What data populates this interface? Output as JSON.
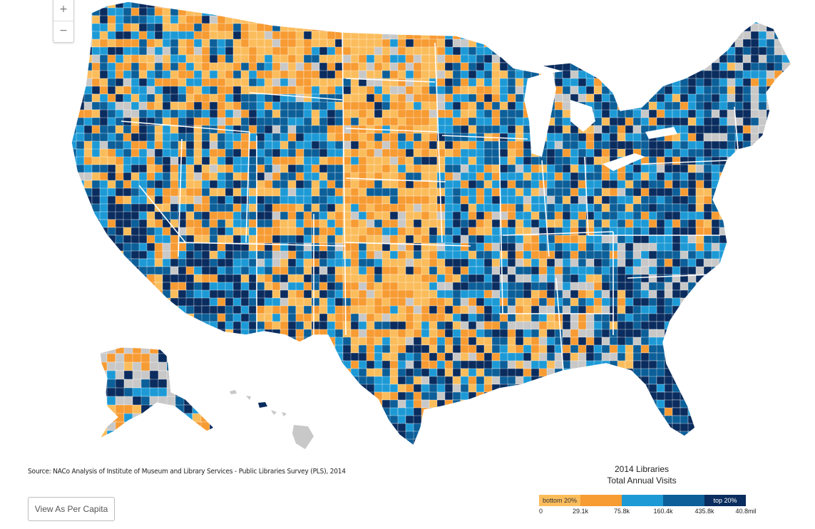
{
  "zoom": {
    "in_label": "+",
    "out_label": "−"
  },
  "source": {
    "label": "Source:",
    "text": "NACo Analysis of Institute of Museum and Library Services - Public Libraries Survey (PLS), 2014"
  },
  "button": {
    "label": "View As Per Capita"
  },
  "legend": {
    "title_line1": "2014 Libraries",
    "title_line2": "Total Annual Visits",
    "bins": [
      {
        "label": "bottom 20%",
        "color": "#fbbd5c"
      },
      {
        "label": "",
        "color": "#f79b33"
      },
      {
        "label": "",
        "color": "#1d9ad6"
      },
      {
        "label": "",
        "color": "#0c5f98"
      },
      {
        "label": "top 20%",
        "color": "#0a2c5e"
      }
    ],
    "ticks": [
      "0",
      "29.1k",
      "75.8k",
      "160.4k",
      "435.8k",
      "40.8mil"
    ]
  },
  "colors": {
    "nodata": "#c8c8c8",
    "border": "#ffffff"
  }
}
